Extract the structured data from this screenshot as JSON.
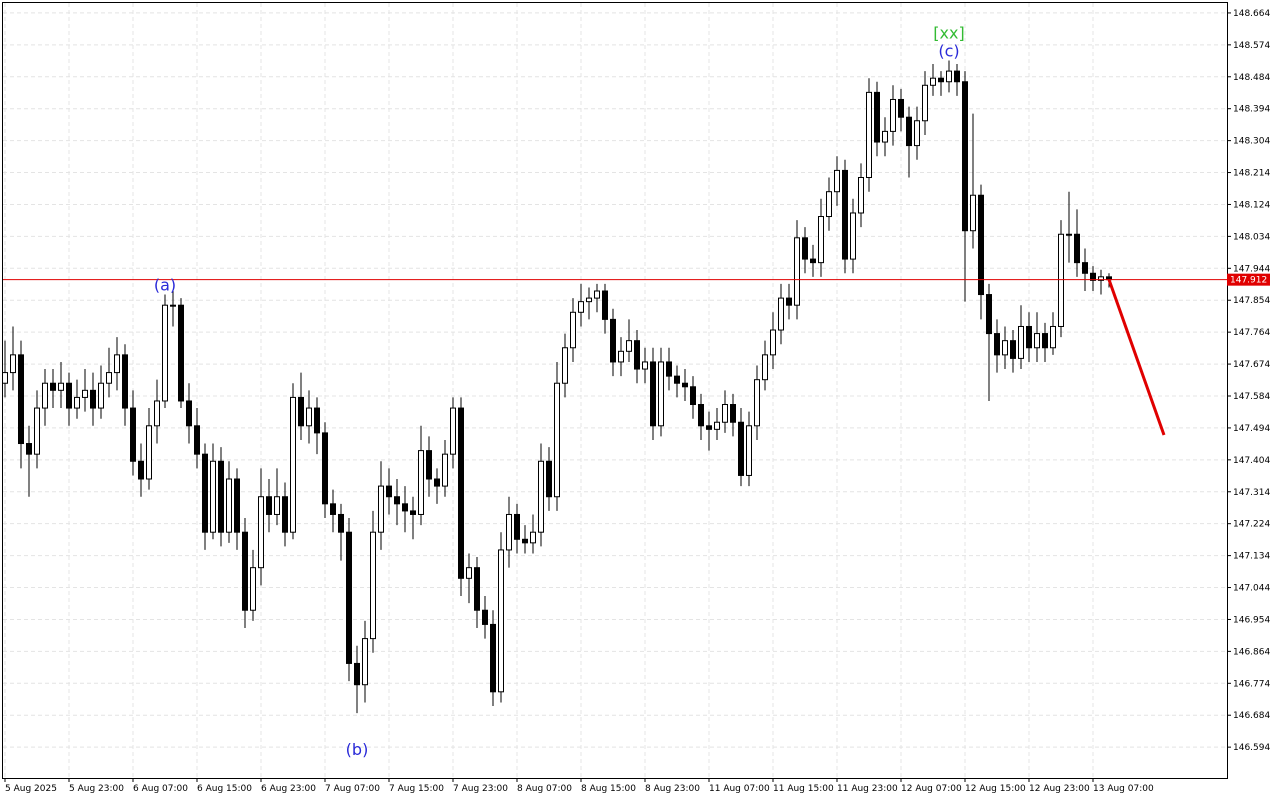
{
  "chart_data": {
    "type": "candlestick",
    "ylim": [
      146.507,
      148.692
    ],
    "yticks": [
      148.664,
      148.574,
      148.484,
      148.394,
      148.304,
      148.214,
      148.124,
      148.034,
      147.944,
      147.854,
      147.764,
      147.674,
      147.584,
      147.494,
      147.404,
      147.314,
      147.224,
      147.134,
      147.044,
      146.954,
      146.864,
      146.774,
      146.684,
      146.594
    ],
    "grid": true,
    "up_color": "#ffffff",
    "down_color": "#000000",
    "categories": [
      "5 Aug 2025",
      null,
      null,
      null,
      null,
      null,
      null,
      null,
      "5 Aug 23:00",
      null,
      null,
      null,
      null,
      null,
      null,
      null,
      "6 Aug 07:00",
      null,
      null,
      null,
      null,
      null,
      null,
      null,
      "6 Aug 15:00",
      null,
      null,
      null,
      null,
      null,
      null,
      null,
      "6 Aug 23:00",
      null,
      null,
      null,
      null,
      null,
      null,
      null,
      "7 Aug 07:00",
      null,
      null,
      null,
      null,
      null,
      null,
      null,
      "7 Aug 15:00",
      null,
      null,
      null,
      null,
      null,
      null,
      null,
      "7 Aug 23:00",
      null,
      null,
      null,
      null,
      null,
      null,
      null,
      "8 Aug 07:00",
      null,
      null,
      null,
      null,
      null,
      null,
      null,
      "8 Aug 15:00",
      null,
      null,
      null,
      null,
      null,
      null,
      null,
      "8 Aug 23:00",
      null,
      null,
      null,
      null,
      null,
      null,
      null,
      "11 Aug 07:00",
      null,
      null,
      null,
      null,
      null,
      null,
      null,
      "11 Aug 15:00",
      null,
      null,
      null,
      null,
      null,
      null,
      null,
      "11 Aug 23:00",
      null,
      null,
      null,
      null,
      null,
      null,
      null,
      "12 Aug 07:00",
      null,
      null,
      null,
      null,
      null,
      null,
      null,
      "12 Aug 15:00",
      null,
      null,
      null,
      null,
      null,
      null,
      null,
      "12 Aug 23:00",
      null,
      null,
      null,
      null,
      null,
      null,
      null,
      "13 Aug 07:00",
      null,
      null
    ],
    "ohlc": [
      [
        147.62,
        147.74,
        147.58,
        147.65
      ],
      [
        147.65,
        147.78,
        147.6,
        147.7
      ],
      [
        147.7,
        147.74,
        147.38,
        147.45
      ],
      [
        147.45,
        147.5,
        147.3,
        147.42
      ],
      [
        147.42,
        147.6,
        147.38,
        147.55
      ],
      [
        147.55,
        147.66,
        147.5,
        147.62
      ],
      [
        147.62,
        147.66,
        147.55,
        147.6
      ],
      [
        147.6,
        147.68,
        147.55,
        147.62
      ],
      [
        147.62,
        147.65,
        147.5,
        147.55
      ],
      [
        147.55,
        147.63,
        147.52,
        147.58
      ],
      [
        147.58,
        147.66,
        147.54,
        147.6
      ],
      [
        147.6,
        147.65,
        147.5,
        147.55
      ],
      [
        147.55,
        147.67,
        147.52,
        147.62
      ],
      [
        147.62,
        147.72,
        147.58,
        147.65
      ],
      [
        147.65,
        147.75,
        147.6,
        147.7
      ],
      [
        147.7,
        147.73,
        147.5,
        147.55
      ],
      [
        147.55,
        147.6,
        147.36,
        147.4
      ],
      [
        147.4,
        147.45,
        147.3,
        147.35
      ],
      [
        147.35,
        147.55,
        147.32,
        147.5
      ],
      [
        147.5,
        147.63,
        147.45,
        147.57
      ],
      [
        147.57,
        147.87,
        147.55,
        147.84
      ],
      [
        147.84,
        147.88,
        147.78,
        147.84
      ],
      [
        147.84,
        147.86,
        147.55,
        147.57
      ],
      [
        147.57,
        147.62,
        147.45,
        147.5
      ],
      [
        147.5,
        147.55,
        147.38,
        147.42
      ],
      [
        147.42,
        147.45,
        147.15,
        147.2
      ],
      [
        147.2,
        147.45,
        147.18,
        147.4
      ],
      [
        147.4,
        147.44,
        147.16,
        147.2
      ],
      [
        147.2,
        147.4,
        147.17,
        147.35
      ],
      [
        147.35,
        147.38,
        147.15,
        147.2
      ],
      [
        147.2,
        147.24,
        146.93,
        146.98
      ],
      [
        146.98,
        147.15,
        146.95,
        147.1
      ],
      [
        147.1,
        147.38,
        147.05,
        147.3
      ],
      [
        147.3,
        147.35,
        147.2,
        147.25
      ],
      [
        147.25,
        147.38,
        147.22,
        147.3
      ],
      [
        147.3,
        147.34,
        147.16,
        147.2
      ],
      [
        147.2,
        147.62,
        147.18,
        147.58
      ],
      [
        147.58,
        147.65,
        147.46,
        147.5
      ],
      [
        147.5,
        147.6,
        147.45,
        147.55
      ],
      [
        147.55,
        147.58,
        147.42,
        147.48
      ],
      [
        147.48,
        147.51,
        147.24,
        147.28
      ],
      [
        147.28,
        147.32,
        147.2,
        147.25
      ],
      [
        147.25,
        147.28,
        147.12,
        147.2
      ],
      [
        147.2,
        147.24,
        146.78,
        146.83
      ],
      [
        146.83,
        146.88,
        146.69,
        146.77
      ],
      [
        146.77,
        146.95,
        146.72,
        146.9
      ],
      [
        146.9,
        147.26,
        146.86,
        147.2
      ],
      [
        147.2,
        147.4,
        147.15,
        147.33
      ],
      [
        147.33,
        147.38,
        147.25,
        147.3
      ],
      [
        147.3,
        147.35,
        147.22,
        147.28
      ],
      [
        147.28,
        147.33,
        147.2,
        147.26
      ],
      [
        147.26,
        147.3,
        147.18,
        147.25
      ],
      [
        147.25,
        147.5,
        147.22,
        147.43
      ],
      [
        147.43,
        147.47,
        147.3,
        147.35
      ],
      [
        147.35,
        147.38,
        147.28,
        147.33
      ],
      [
        147.33,
        147.46,
        147.3,
        147.42
      ],
      [
        147.42,
        147.58,
        147.38,
        147.55
      ],
      [
        147.55,
        147.58,
        147.02,
        147.07
      ],
      [
        147.07,
        147.14,
        147.0,
        147.1
      ],
      [
        147.1,
        147.13,
        146.93,
        146.98
      ],
      [
        146.98,
        147.02,
        146.9,
        146.94
      ],
      [
        146.94,
        146.98,
        146.71,
        146.75
      ],
      [
        146.75,
        147.2,
        146.72,
        147.15
      ],
      [
        147.15,
        147.3,
        147.1,
        147.25
      ],
      [
        147.25,
        147.28,
        147.14,
        147.18
      ],
      [
        147.18,
        147.22,
        147.14,
        147.17
      ],
      [
        147.17,
        147.25,
        147.14,
        147.2
      ],
      [
        147.2,
        147.45,
        147.16,
        147.4
      ],
      [
        147.4,
        147.44,
        147.26,
        147.3
      ],
      [
        147.3,
        147.68,
        147.26,
        147.62
      ],
      [
        147.62,
        147.76,
        147.58,
        147.72
      ],
      [
        147.72,
        147.86,
        147.68,
        147.82
      ],
      [
        147.82,
        147.9,
        147.78,
        147.85
      ],
      [
        147.85,
        147.89,
        147.8,
        147.86
      ],
      [
        147.86,
        147.9,
        147.82,
        147.88
      ],
      [
        147.88,
        147.9,
        147.76,
        147.8
      ],
      [
        147.8,
        147.83,
        147.64,
        147.68
      ],
      [
        147.68,
        147.75,
        147.64,
        147.71
      ],
      [
        147.71,
        147.8,
        147.68,
        147.74
      ],
      [
        147.74,
        147.77,
        147.62,
        147.66
      ],
      [
        147.66,
        147.72,
        147.62,
        147.68
      ],
      [
        147.68,
        147.72,
        147.46,
        147.5
      ],
      [
        147.5,
        147.72,
        147.47,
        147.68
      ],
      [
        147.68,
        147.72,
        147.6,
        147.64
      ],
      [
        147.64,
        147.67,
        147.58,
        147.62
      ],
      [
        147.62,
        147.66,
        147.57,
        147.61
      ],
      [
        147.61,
        147.64,
        147.52,
        147.56
      ],
      [
        147.56,
        147.59,
        147.46,
        147.5
      ],
      [
        147.5,
        147.54,
        147.43,
        147.49
      ],
      [
        147.49,
        147.55,
        147.46,
        147.51
      ],
      [
        147.51,
        147.6,
        147.48,
        147.56
      ],
      [
        147.56,
        147.59,
        147.47,
        147.51
      ],
      [
        147.51,
        147.55,
        147.33,
        147.36
      ],
      [
        147.36,
        147.54,
        147.33,
        147.5
      ],
      [
        147.5,
        147.67,
        147.46,
        147.63
      ],
      [
        147.63,
        147.74,
        147.6,
        147.7
      ],
      [
        147.7,
        147.82,
        147.66,
        147.77
      ],
      [
        147.77,
        147.9,
        147.73,
        147.86
      ],
      [
        147.86,
        147.9,
        147.8,
        147.84
      ],
      [
        147.84,
        148.08,
        147.8,
        148.03
      ],
      [
        148.03,
        148.06,
        147.93,
        147.97
      ],
      [
        147.97,
        148.01,
        147.92,
        147.96
      ],
      [
        147.96,
        148.14,
        147.92,
        148.09
      ],
      [
        148.09,
        148.2,
        148.05,
        148.16
      ],
      [
        148.16,
        148.26,
        148.12,
        148.22
      ],
      [
        148.22,
        148.25,
        147.93,
        147.97
      ],
      [
        147.97,
        148.14,
        147.93,
        148.1
      ],
      [
        148.1,
        148.24,
        148.06,
        148.2
      ],
      [
        148.2,
        148.48,
        148.16,
        148.44
      ],
      [
        148.44,
        148.47,
        148.26,
        148.3
      ],
      [
        148.3,
        148.37,
        148.26,
        148.33
      ],
      [
        148.33,
        148.46,
        148.29,
        148.42
      ],
      [
        148.42,
        148.45,
        148.33,
        148.37
      ],
      [
        148.37,
        148.4,
        148.2,
        148.29
      ],
      [
        148.29,
        148.4,
        148.25,
        148.36
      ],
      [
        148.36,
        148.5,
        148.32,
        148.46
      ],
      [
        148.46,
        148.52,
        148.43,
        148.48
      ],
      [
        148.48,
        148.5,
        148.43,
        148.47
      ],
      [
        148.47,
        148.53,
        148.44,
        148.5
      ],
      [
        148.5,
        148.52,
        148.43,
        148.47
      ],
      [
        148.47,
        148.5,
        147.85,
        148.05
      ],
      [
        148.05,
        148.38,
        148.0,
        148.15
      ],
      [
        148.15,
        148.18,
        147.8,
        147.87
      ],
      [
        147.87,
        147.9,
        147.57,
        147.76
      ],
      [
        147.76,
        147.8,
        147.65,
        147.7
      ],
      [
        147.7,
        147.78,
        147.66,
        147.74
      ],
      [
        147.74,
        147.77,
        147.65,
        147.69
      ],
      [
        147.69,
        147.84,
        147.66,
        147.78
      ],
      [
        147.78,
        147.82,
        147.68,
        147.72
      ],
      [
        147.72,
        147.82,
        147.68,
        147.76
      ],
      [
        147.76,
        147.79,
        147.68,
        147.72
      ],
      [
        147.72,
        147.82,
        147.7,
        147.78
      ],
      [
        147.78,
        148.08,
        147.75,
        148.04
      ],
      [
        148.04,
        148.16,
        147.96,
        148.04
      ],
      [
        148.04,
        148.11,
        147.92,
        147.96
      ],
      [
        147.96,
        148.0,
        147.88,
        147.93
      ],
      [
        147.93,
        147.95,
        147.88,
        147.91
      ],
      [
        147.91,
        147.94,
        147.87,
        147.92
      ],
      [
        147.92,
        147.93,
        147.89,
        147.912
      ]
    ],
    "last_price": 147.912,
    "last_price_color": "#e00000",
    "forecast": [
      147.912,
      147.474
    ],
    "forecast_color": "#e00000",
    "annotations": [
      {
        "text": "(a)",
        "index": 20,
        "place": "above",
        "color": "#2a2ad8"
      },
      {
        "text": "(b)",
        "index": 44,
        "place": "below",
        "color": "#2a2ad8"
      },
      {
        "text": "(c)",
        "index": 118,
        "place": "above",
        "color": "#2a2ad8"
      },
      {
        "text": "[xx]",
        "index": 118,
        "place": "above2",
        "color": "#33bb33"
      }
    ]
  }
}
